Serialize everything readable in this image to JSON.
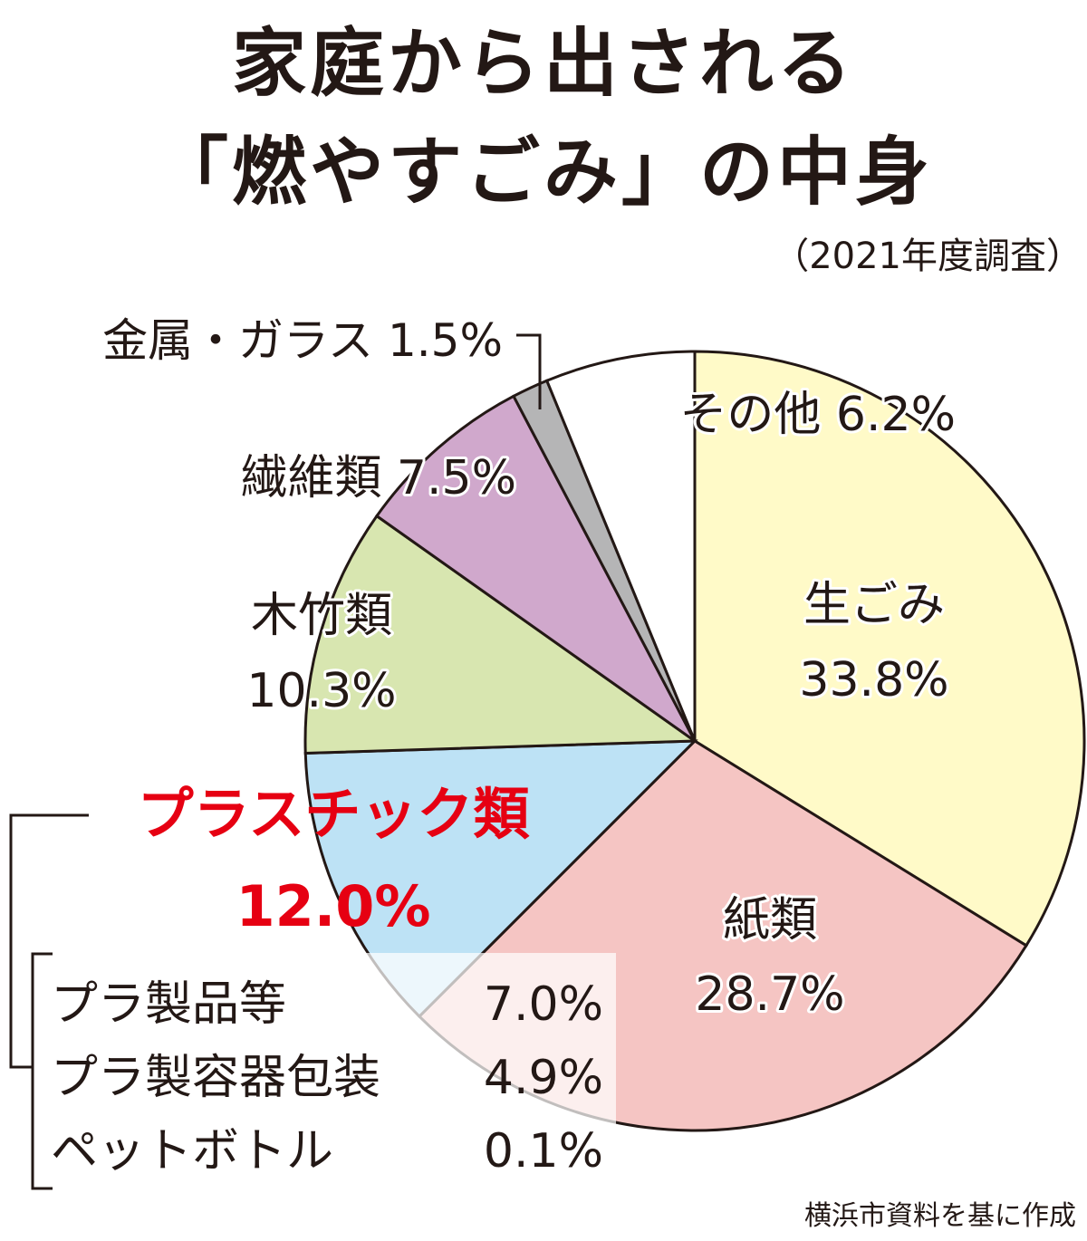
{
  "title_line1": "家庭から出される",
  "title_line2": "「燃やすごみ」の中身",
  "subtitle": "（2021年度調査）",
  "source": "横浜市資料を基に作成",
  "chart_data": {
    "type": "pie",
    "unit": "%",
    "start": "12 o'clock",
    "direction": "clockwise",
    "slices": [
      {
        "name": "生ごみ",
        "value": 33.8,
        "label": "33.8%",
        "color": "#fffac8"
      },
      {
        "name": "紙類",
        "value": 28.7,
        "label": "28.7%",
        "color": "#f5c5c3"
      },
      {
        "name": "プラスチック類",
        "value": 12.0,
        "label": "12.0%",
        "color": "#bde2f5",
        "highlight_color": "#e60012"
      },
      {
        "name": "木竹類",
        "value": 10.3,
        "label": "10.3%",
        "color": "#d8e6b0"
      },
      {
        "name": "繊維類",
        "value": 7.5,
        "label": "7.5%",
        "color": "#d0a8cc"
      },
      {
        "name": "金属・ガラス",
        "value": 1.5,
        "label": "1.5%",
        "color": "#b5b5b6"
      },
      {
        "name": "その他",
        "value": 6.2,
        "label": "6.2%",
        "color": "#ffffff"
      }
    ],
    "plastic_breakdown": [
      {
        "name": "プラ製品等",
        "value": 7.0,
        "label": "7.0%"
      },
      {
        "name": "プラ製容器包装",
        "value": 4.9,
        "label": "4.9%"
      },
      {
        "name": "ペットボトル",
        "value": 0.1,
        "label": "0.1%"
      }
    ]
  }
}
